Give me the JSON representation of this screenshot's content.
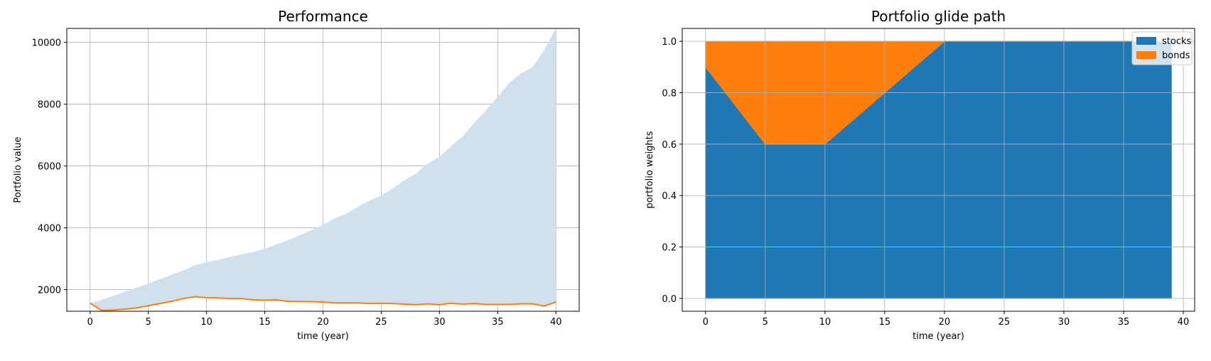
{
  "chart_data": [
    {
      "type": "line",
      "title": "Performance",
      "xlabel": "time (year)",
      "ylabel": "Portfolio value",
      "xlim": [
        -2,
        42
      ],
      "ylim": [
        1300,
        10450
      ],
      "xticks": [
        0,
        5,
        10,
        15,
        20,
        25,
        30,
        35,
        40
      ],
      "yticks": [
        2000,
        4000,
        6000,
        8000,
        10000
      ],
      "grid": true,
      "x": [
        0,
        1,
        2,
        3,
        4,
        5,
        6,
        7,
        8,
        9,
        10,
        11,
        12,
        13,
        14,
        15,
        16,
        17,
        18,
        19,
        20,
        21,
        22,
        23,
        24,
        25,
        26,
        27,
        28,
        29,
        30,
        31,
        32,
        33,
        34,
        35,
        36,
        37,
        38,
        39,
        40
      ],
      "band": {
        "color": "#cfe0ee",
        "upper": [
          1560,
          1670,
          1800,
          1930,
          2060,
          2200,
          2340,
          2480,
          2620,
          2790,
          2880,
          2960,
          3060,
          3140,
          3220,
          3320,
          3460,
          3600,
          3760,
          3920,
          4100,
          4300,
          4460,
          4680,
          4880,
          5040,
          5280,
          5540,
          5760,
          6080,
          6300,
          6640,
          6960,
          7400,
          7800,
          8240,
          8690,
          9000,
          9200,
          9760,
          10450
        ],
        "lower": [
          1560,
          1330,
          1340,
          1370,
          1410,
          1480,
          1550,
          1620,
          1710,
          1770,
          1740,
          1730,
          1710,
          1710,
          1670,
          1660,
          1670,
          1620,
          1620,
          1610,
          1600,
          1570,
          1570,
          1570,
          1550,
          1560,
          1550,
          1530,
          1510,
          1540,
          1510,
          1560,
          1530,
          1550,
          1520,
          1520,
          1520,
          1540,
          1540,
          1470,
          1600
        ]
      },
      "series": [
        {
          "color": "#ff7f0e",
          "values": [
            1560,
            1330,
            1340,
            1370,
            1410,
            1480,
            1550,
            1620,
            1710,
            1770,
            1740,
            1730,
            1710,
            1710,
            1670,
            1660,
            1670,
            1620,
            1620,
            1610,
            1600,
            1570,
            1570,
            1570,
            1550,
            1560,
            1550,
            1530,
            1510,
            1540,
            1510,
            1560,
            1530,
            1550,
            1520,
            1520,
            1520,
            1540,
            1540,
            1470,
            1600
          ]
        }
      ]
    },
    {
      "type": "area",
      "stacked": true,
      "title": "Portfolio glide path",
      "xlabel": "time (year)",
      "ylabel": "portfolio weights",
      "xlim": [
        -1.95,
        40.95
      ],
      "ylim": [
        -0.05,
        1.05
      ],
      "xticks": [
        0,
        5,
        10,
        15,
        20,
        25,
        30,
        35,
        40
      ],
      "yticks": [
        "0.0",
        "0.2",
        "0.4",
        "0.6",
        "0.8",
        "1.0"
      ],
      "grid": true,
      "legend_position": "top-right",
      "x": [
        0,
        5,
        10,
        15,
        20,
        25,
        30,
        35,
        39
      ],
      "series": [
        {
          "name": "stocks",
          "color": "#1f77b4",
          "values": [
            0.9,
            0.6,
            0.6,
            0.8,
            1.0,
            1.0,
            1.0,
            1.0,
            1.0
          ]
        },
        {
          "name": "bonds",
          "color": "#ff7f0e",
          "values": [
            0.1,
            0.4,
            0.4,
            0.2,
            0.0,
            0.0,
            0.0,
            0.0,
            0.0
          ]
        }
      ]
    }
  ]
}
